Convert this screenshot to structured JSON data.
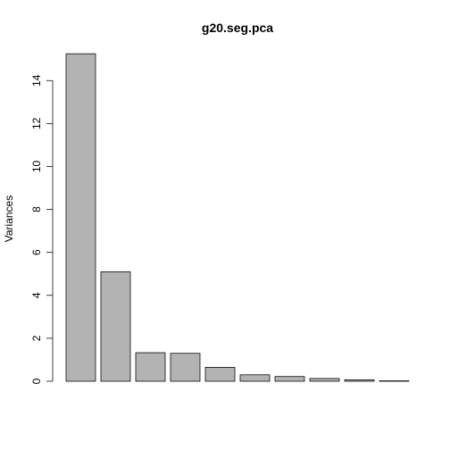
{
  "chart_data": {
    "type": "bar",
    "title": "g20.seg.pca",
    "xlabel": "",
    "ylabel": "Variances",
    "ylim": [
      0,
      15.3
    ],
    "yticks": [
      0,
      2,
      4,
      6,
      8,
      10,
      12,
      14
    ],
    "values": [
      15.25,
      5.1,
      1.33,
      1.3,
      0.65,
      0.3,
      0.22,
      0.13,
      0.07,
      0.02
    ],
    "bar_color": "#b3b3b3",
    "grid": false
  }
}
